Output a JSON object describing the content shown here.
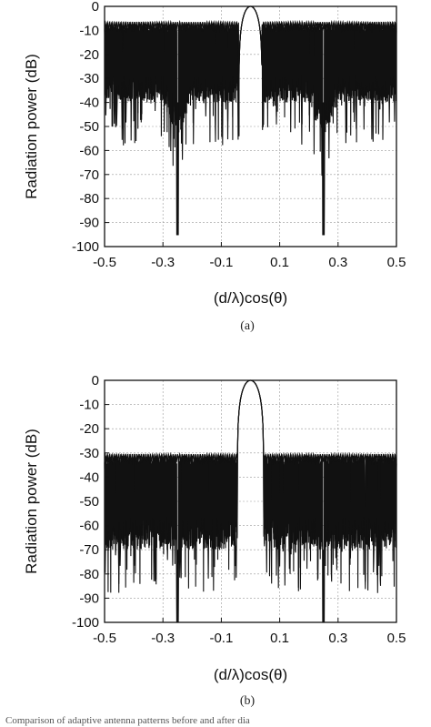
{
  "chart_data": [
    {
      "type": "line",
      "panel_label": "(a)",
      "xlabel": "(d/λ)cos(θ)",
      "ylabel": "Radiation power (dB)",
      "xlim": [
        -0.5,
        0.5
      ],
      "ylim": [
        -100,
        0
      ],
      "xticks": [
        -0.5,
        -0.3,
        -0.1,
        0.1,
        0.3,
        0.5
      ],
      "xtick_labels": [
        "-0.5",
        "-0.3",
        "-0.1",
        "0.1",
        "0.3",
        "0.5"
      ],
      "yticks": [
        0,
        -10,
        -20,
        -30,
        -40,
        -50,
        -60,
        -70,
        -80,
        -90,
        -100
      ],
      "ytick_labels": [
        "0",
        "-10",
        "-20",
        "-30",
        "-40",
        "-50",
        "-60",
        "-70",
        "-80",
        "-90",
        "-100"
      ],
      "grid": true,
      "mainlobe": {
        "center": 0.0,
        "halfwidth": 0.04,
        "peak": 0
      },
      "sidelobe_envelope": -7,
      "sidelobe_floor": -40,
      "deep_nulls": [
        {
          "x": -0.25,
          "y": -95
        },
        {
          "x": 0.25,
          "y": -95
        }
      ],
      "notch_regions": [
        {
          "center": -0.25,
          "halfwidth": 0.05,
          "floor": -55
        },
        {
          "center": 0.25,
          "halfwidth": 0.05,
          "floor": -55
        }
      ]
    },
    {
      "type": "line",
      "panel_label": "(b)",
      "xlabel": "(d/λ)cos(θ)",
      "ylabel": "Radiation power (dB)",
      "xlim": [
        -0.5,
        0.5
      ],
      "ylim": [
        -100,
        0
      ],
      "xticks": [
        -0.5,
        -0.3,
        -0.1,
        0.1,
        0.3,
        0.5
      ],
      "xtick_labels": [
        "-0.5",
        "-0.3",
        "-0.1",
        "0.1",
        "0.3",
        "0.5"
      ],
      "yticks": [
        0,
        -10,
        -20,
        -30,
        -40,
        -50,
        -60,
        -70,
        -80,
        -90,
        -100
      ],
      "ytick_labels": [
        "0",
        "-10",
        "-20",
        "-30",
        "-40",
        "-50",
        "-60",
        "-70",
        "-80",
        "-90",
        "-100"
      ],
      "grid": true,
      "mainlobe": {
        "center": 0.0,
        "halfwidth": 0.045,
        "peak": 0
      },
      "sidelobe_envelope": -31,
      "sidelobe_floor": -70,
      "deep_nulls": [
        {
          "x": -0.25,
          "y": -100
        },
        {
          "x": 0.25,
          "y": -100
        }
      ],
      "notch_regions": []
    }
  ],
  "caption": "Comparison of adaptive antenna patterns before and after dia"
}
